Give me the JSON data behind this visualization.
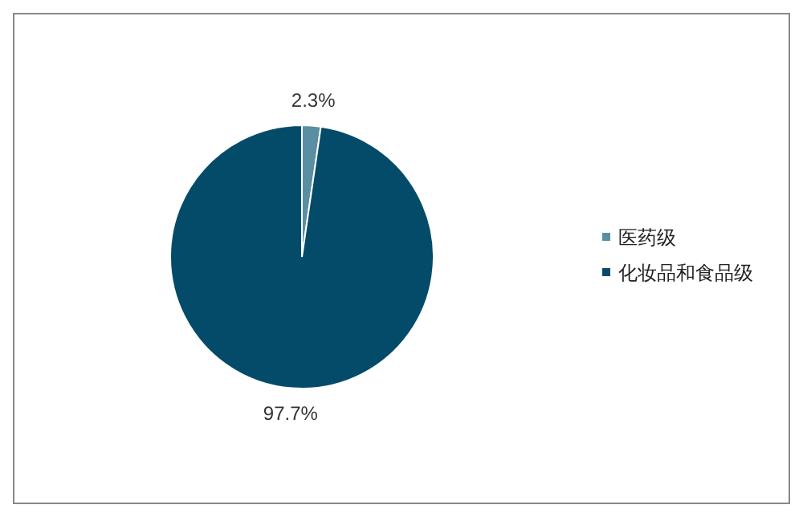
{
  "chart_data": {
    "type": "pie",
    "categories": [
      "医药级",
      "化妆品和食品级"
    ],
    "values": [
      2.3,
      97.7
    ],
    "colors": [
      "#5a8ea2",
      "#034b69"
    ],
    "value_labels": [
      "2.3%",
      "97.7%"
    ],
    "legend": "right"
  }
}
